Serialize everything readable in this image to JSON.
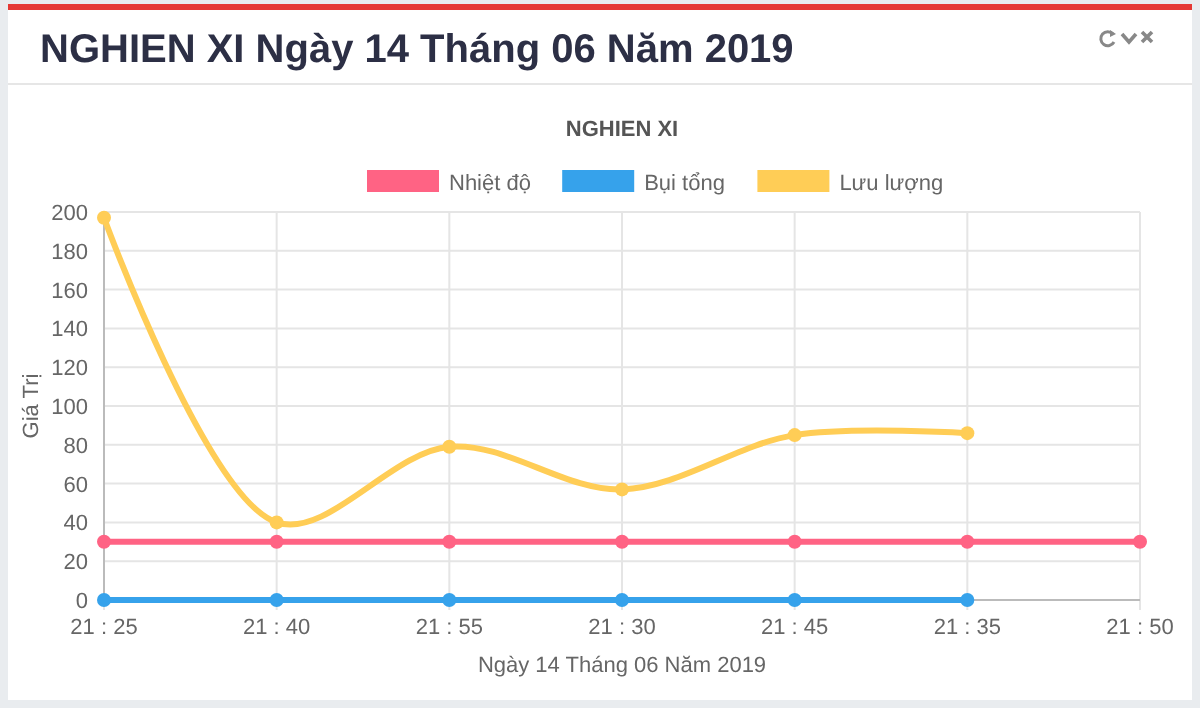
{
  "chart_data": {
    "type": "line",
    "title": "NGHIEN XI Ngày 14 Tháng 06 Năm 2019",
    "subtitle": "NGHIEN XI",
    "xlabel": "Ngày 14 Tháng 06 Năm 2019",
    "ylabel": "Giá Trị",
    "categories": [
      "21 : 25",
      "21 : 40",
      "21 : 55",
      "21 : 30",
      "21 : 45",
      "21 : 35",
      "21 : 50"
    ],
    "series": [
      {
        "name": "Nhiệt độ",
        "color": "#ff6384",
        "values": [
          30,
          30,
          30,
          30,
          30,
          30,
          30
        ]
      },
      {
        "name": "Bụi tổng",
        "color": "#36a2eb",
        "values": [
          0,
          0,
          0,
          0,
          0,
          0,
          null
        ]
      },
      {
        "name": "Lưu lượng",
        "color": "#ffcd56",
        "values": [
          197,
          40,
          79,
          57,
          85,
          86,
          null
        ]
      }
    ],
    "ylim": [
      0,
      200
    ],
    "yticks": [
      0,
      20,
      40,
      60,
      80,
      100,
      120,
      140,
      160,
      180,
      200
    ],
    "grid": true,
    "legend": "top",
    "marker": "circle",
    "line_style": "solid"
  }
}
